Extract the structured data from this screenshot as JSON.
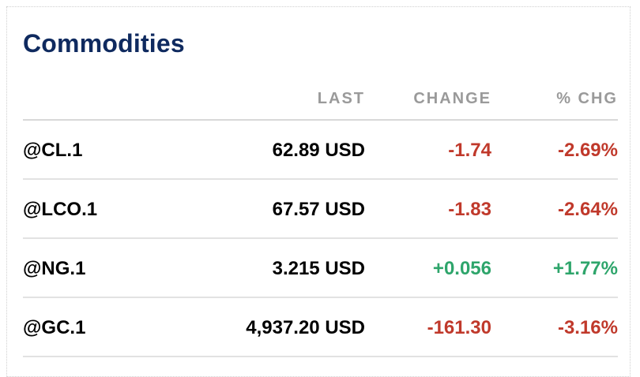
{
  "widget": {
    "title": "Commodities",
    "headers": {
      "last": "LAST",
      "change": "CHANGE",
      "pct_change": "% CHG"
    },
    "rows": [
      {
        "symbol": "@CL.1",
        "last": "62.89 USD",
        "change": "-1.74",
        "pct_change": "-2.69%",
        "direction": "down"
      },
      {
        "symbol": "@LCO.1",
        "last": "67.57 USD",
        "change": "-1.83",
        "pct_change": "-2.64%",
        "direction": "down"
      },
      {
        "symbol": "@NG.1",
        "last": "3.215 USD",
        "change": "+0.056",
        "pct_change": "+1.77%",
        "direction": "up"
      },
      {
        "symbol": "@GC.1",
        "last": "4,937.20 USD",
        "change": "-161.30",
        "pct_change": "-3.16%",
        "direction": "down"
      }
    ]
  },
  "colors": {
    "title": "#0f2a5f",
    "header": "#9a9a9a",
    "negative": "#c0392b",
    "positive": "#2ea56b"
  }
}
